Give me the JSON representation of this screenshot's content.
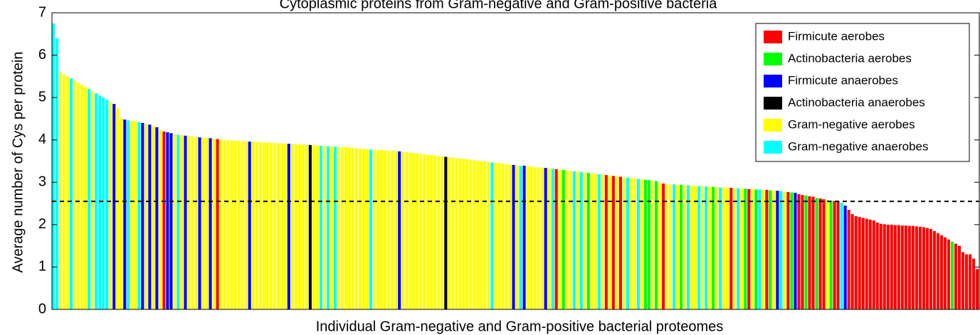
{
  "chart_data": {
    "type": "bar",
    "title": "Cytoplasmic proteins from Gram-negative and Gram-positive bacteria",
    "xlabel": "Individual Gram-negative and Gram-positive bacterial proteomes",
    "ylabel": "Average number of Cys per protein",
    "ylim": [
      0,
      7
    ],
    "yticks": [
      0,
      1,
      2,
      3,
      4,
      5,
      6,
      7
    ],
    "hline": 2.55,
    "legend_position": "upper right",
    "legend": [
      {
        "name": "Firmicute aerobes",
        "color": "#f00"
      },
      {
        "name": "Actinobacteria aerobes",
        "color": "#0f0"
      },
      {
        "name": "Firmicute anaerobes",
        "color": "#00f"
      },
      {
        "name": "Actinobacteria anaerobes",
        "color": "#000"
      },
      {
        "name": "Gram-negative aerobes",
        "color": "#ff0"
      },
      {
        "name": "Gram-negative anaerobes",
        "color": "#0ff"
      }
    ],
    "values": [
      6.75,
      6.4,
      5.6,
      5.55,
      5.5,
      5.45,
      5.4,
      5.35,
      5.3,
      5.25,
      5.2,
      5.15,
      5.1,
      5.05,
      5.0,
      4.95,
      4.9,
      4.85,
      4.75,
      4.5,
      4.48,
      4.46,
      4.45,
      4.44,
      4.42,
      4.4,
      4.38,
      4.36,
      4.33,
      4.3,
      4.25,
      4.2,
      4.18,
      4.16,
      4.14,
      4.12,
      4.11,
      4.1,
      4.09,
      4.08,
      4.07,
      4.06,
      4.05,
      4.05,
      4.04,
      4.03,
      4.02,
      4.01,
      4.0,
      3.99,
      3.99,
      3.98,
      3.98,
      3.97,
      3.97,
      3.96,
      3.96,
      3.95,
      3.95,
      3.94,
      3.94,
      3.93,
      3.93,
      3.92,
      3.92,
      3.91,
      3.91,
      3.9,
      3.9,
      3.89,
      3.89,
      3.88,
      3.88,
      3.87,
      3.87,
      3.86,
      3.86,
      3.85,
      3.85,
      3.84,
      3.84,
      3.83,
      3.83,
      3.82,
      3.81,
      3.8,
      3.8,
      3.79,
      3.78,
      3.77,
      3.77,
      3.76,
      3.76,
      3.75,
      3.75,
      3.74,
      3.74,
      3.73,
      3.72,
      3.71,
      3.7,
      3.69,
      3.68,
      3.67,
      3.66,
      3.65,
      3.64,
      3.63,
      3.62,
      3.61,
      3.6,
      3.59,
      3.58,
      3.57,
      3.56,
      3.55,
      3.54,
      3.53,
      3.52,
      3.51,
      3.5,
      3.49,
      3.48,
      3.47,
      3.46,
      3.45,
      3.44,
      3.43,
      3.42,
      3.41,
      3.4,
      3.39,
      3.39,
      3.38,
      3.37,
      3.36,
      3.35,
      3.35,
      3.34,
      3.33,
      3.32,
      3.31,
      3.3,
      3.29,
      3.28,
      3.27,
      3.26,
      3.25,
      3.24,
      3.23,
      3.22,
      3.21,
      3.2,
      3.19,
      3.18,
      3.17,
      3.16,
      3.15,
      3.14,
      3.13,
      3.12,
      3.11,
      3.1,
      3.09,
      3.08,
      3.07,
      3.06,
      3.05,
      3.04,
      3.03,
      2.98,
      2.97,
      2.96,
      2.95,
      2.95,
      2.94,
      2.94,
      2.93,
      2.93,
      2.92,
      2.92,
      2.91,
      2.91,
      2.9,
      2.9,
      2.89,
      2.89,
      2.88,
      2.88,
      2.87,
      2.87,
      2.86,
      2.86,
      2.85,
      2.85,
      2.84,
      2.84,
      2.83,
      2.83,
      2.82,
      2.82,
      2.81,
      2.8,
      2.8,
      2.79,
      2.78,
      2.77,
      2.76,
      2.75,
      2.72,
      2.7,
      2.69,
      2.67,
      2.66,
      2.63,
      2.62,
      2.6,
      2.58,
      2.57,
      2.56,
      2.55,
      2.52,
      2.45,
      2.35,
      2.25,
      2.2,
      2.18,
      2.16,
      2.14,
      2.12,
      2.1,
      2.05,
      2.02,
      2.01,
      2.0,
      2.0,
      1.99,
      1.99,
      1.98,
      1.98,
      1.97,
      1.97,
      1.96,
      1.95,
      1.94,
      1.92,
      1.9,
      1.85,
      1.8,
      1.75,
      1.7,
      1.65,
      1.6,
      1.55,
      1.5,
      1.35,
      1.3,
      1.3,
      1.2,
      0.95
    ],
    "colors": [
      "#0ff",
      "#0ff",
      "#ff0",
      "#ff0",
      "#ff0",
      "#0ff",
      "#ff0",
      "#ff0",
      "#ff0",
      "#ff0",
      "#0ff",
      "#ff0",
      "#0ff",
      "#0ff",
      "#0ff",
      "#0ff",
      "#ff0",
      "#00f",
      "#ff0",
      "#ff0",
      "#00f",
      "#0ff",
      "#ff0",
      "#ff0",
      "#0ff",
      "#00f",
      "#ff0",
      "#00f",
      "#ff0",
      "#00f",
      "#ff0",
      "#f00",
      "#00f",
      "#00f",
      "#ff0",
      "#0ff",
      "#ff0",
      "#00f",
      "#ff0",
      "#ff0",
      "#ff0",
      "#00f",
      "#ff0",
      "#ff0",
      "#00f",
      "#ff0",
      "#f00",
      "#ff0",
      "#ff0",
      "#ff0",
      "#ff0",
      "#ff0",
      "#ff0",
      "#ff0",
      "#ff0",
      "#00f",
      "#ff0",
      "#ff0",
      "#ff0",
      "#ff0",
      "#ff0",
      "#ff0",
      "#ff0",
      "#ff0",
      "#ff0",
      "#ff0",
      "#00f",
      "#ff0",
      "#ff0",
      "#ff0",
      "#ff0",
      "#ff0",
      "#000",
      "#ff0",
      "#ff0",
      "#0ff",
      "#ff0",
      "#0ff",
      "#ff0",
      "#0ff",
      "#ff0",
      "#ff0",
      "#ff0",
      "#ff0",
      "#ff0",
      "#ff0",
      "#ff0",
      "#ff0",
      "#ff0",
      "#0ff",
      "#ff0",
      "#ff0",
      "#ff0",
      "#ff0",
      "#ff0",
      "#ff0",
      "#ff0",
      "#00f",
      "#ff0",
      "#ff0",
      "#ff0",
      "#ff0",
      "#ff0",
      "#ff0",
      "#ff0",
      "#ff0",
      "#ff0",
      "#ff0",
      "#ff0",
      "#ff0",
      "#000",
      "#ff0",
      "#ff0",
      "#ff0",
      "#ff0",
      "#ff0",
      "#ff0",
      "#ff0",
      "#ff0",
      "#ff0",
      "#ff0",
      "#ff0",
      "#ff0",
      "#0ff",
      "#ff0",
      "#ff0",
      "#ff0",
      "#ff0",
      "#ff0",
      "#00f",
      "#ff0",
      "#0ff",
      "#00f",
      "#ff0",
      "#ff0",
      "#ff0",
      "#ff0",
      "#ff0",
      "#00f",
      "#ff0",
      "#0ff",
      "#f00",
      "#ff0",
      "#0f0",
      "#ff0",
      "#ff0",
      "#0ff",
      "#ff0",
      "#0ff",
      "#ff0",
      "#0f0",
      "#ff0",
      "#ff0",
      "#0ff",
      "#ff0",
      "#f00",
      "#ff0",
      "#f00",
      "#ff0",
      "#f00",
      "#ff0",
      "#0ff",
      "#ff0",
      "#ff0",
      "#0ff",
      "#ff0",
      "#0f0",
      "#0f0",
      "#ff0",
      "#0f0",
      "#ff0",
      "#f00",
      "#ff0",
      "#ff0",
      "#0ff",
      "#ff0",
      "#0f0",
      "#ff0",
      "#0ff",
      "#ff0",
      "#ff0",
      "#0ff",
      "#ff0",
      "#0ff",
      "#ff0",
      "#0f0",
      "#ff0",
      "#0ff",
      "#ff0",
      "#ff0",
      "#f00",
      "#ff0",
      "#0ff",
      "#ff0",
      "#0f0",
      "#f00",
      "#ff0",
      "#0f0",
      "#0ff",
      "#ff0",
      "#f00",
      "#0f0",
      "#ff0",
      "#00f",
      "#0ff",
      "#ff0",
      "#f00",
      "#0f0",
      "#00f",
      "#f00",
      "#f00",
      "#0f0",
      "#f00",
      "#f00",
      "#0f0",
      "#f00",
      "#f00",
      "#ff0",
      "#0f0",
      "#f00",
      "#f00",
      "#0ff",
      "#00f",
      "#f00",
      "#f00",
      "#f00",
      "#f00",
      "#f00",
      "#f00",
      "#f00",
      "#f00",
      "#f00",
      "#f00",
      "#f00",
      "#f00",
      "#f00",
      "#f00",
      "#f00",
      "#f00",
      "#f00",
      "#f00",
      "#f00",
      "#f00",
      "#f00",
      "#f00",
      "#f00",
      "#f00",
      "#f00",
      "#f00",
      "#f00",
      "#f00",
      "#f00",
      "#0f0",
      "#f00",
      "#f00",
      "#f00",
      "#f00",
      "#f00",
      "#f00",
      "#f00"
    ]
  }
}
